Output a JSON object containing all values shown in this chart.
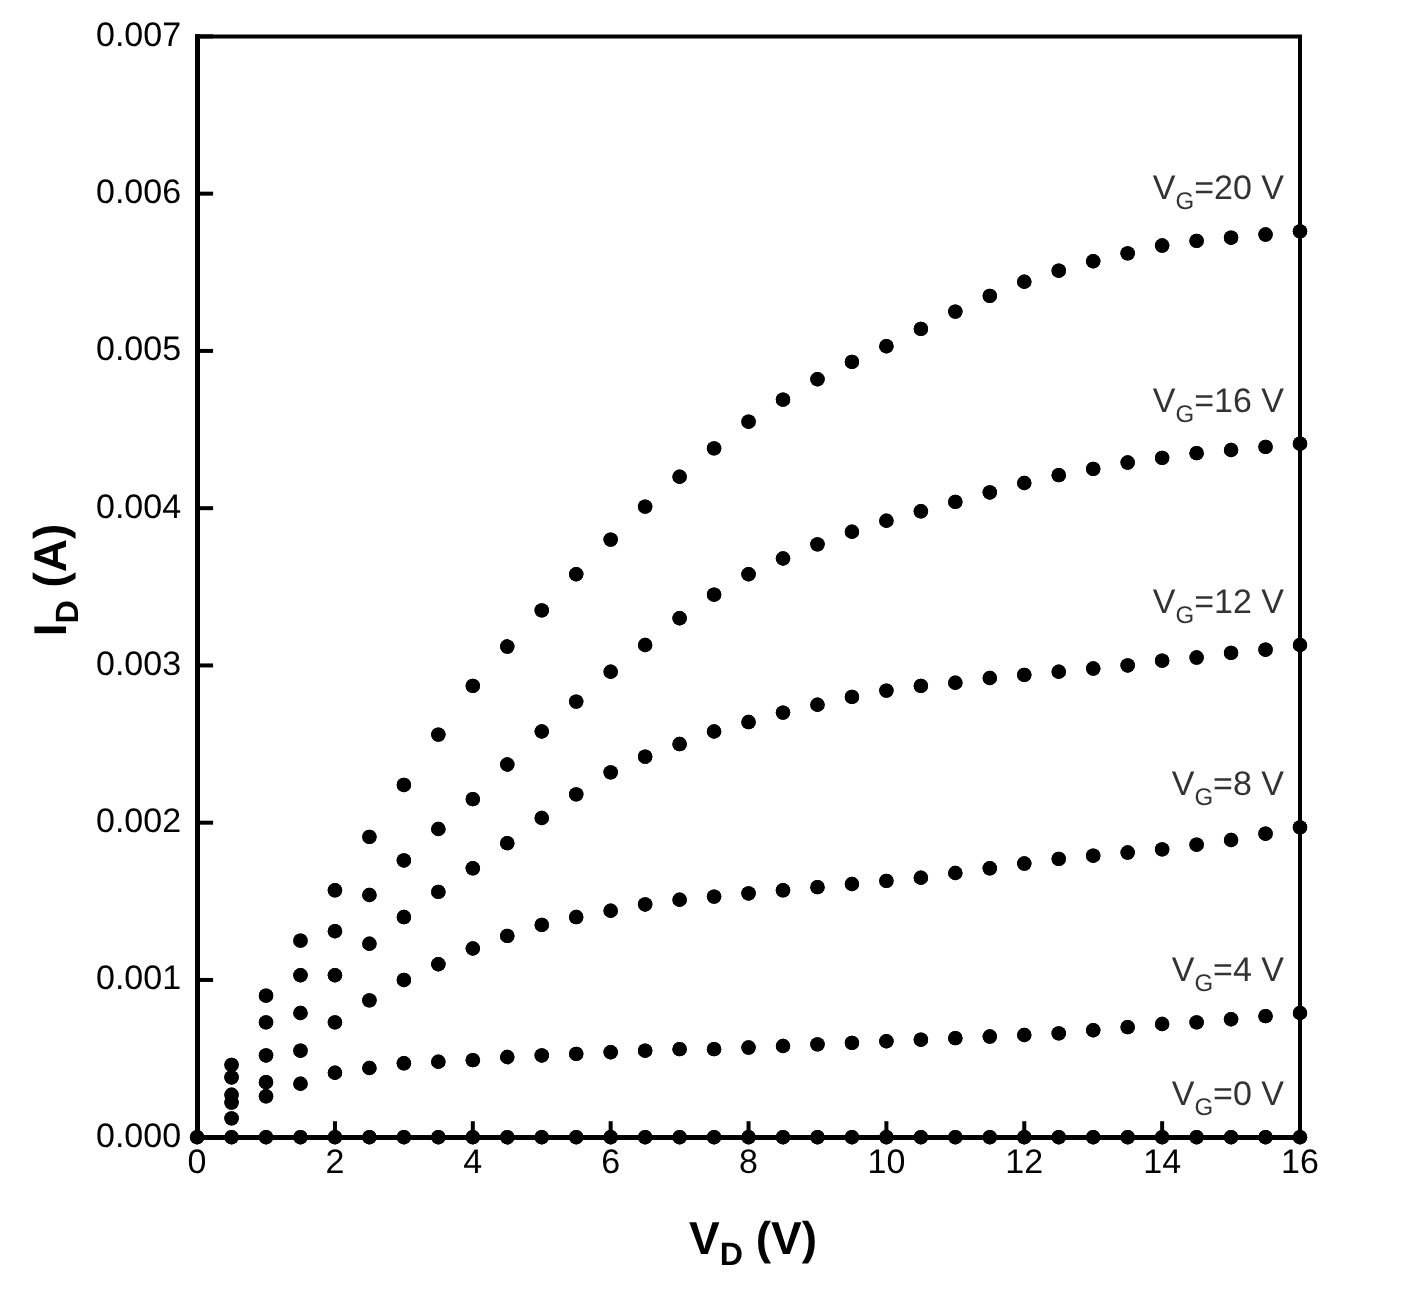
{
  "chart_data": {
    "type": "scatter",
    "xlabel": "V$_{D}$ (V)",
    "ylabel": "I$_{D}$ (A)",
    "x": [
      0,
      0.5,
      1,
      1.5,
      2,
      2.5,
      3,
      3.5,
      4,
      4.5,
      5,
      5.5,
      6,
      6.5,
      7,
      7.5,
      8,
      8.5,
      9,
      9.5,
      10,
      10.5,
      11,
      11.5,
      12,
      12.5,
      13,
      13.5,
      14,
      14.5,
      15,
      15.5,
      16
    ],
    "xlim": [
      0,
      16
    ],
    "xticks": [
      0,
      2,
      4,
      6,
      8,
      10,
      12,
      14,
      16
    ],
    "ylim": [
      0,
      0.007
    ],
    "yticks": [
      {
        "value": 0,
        "label": "0.000"
      },
      0.001,
      0.002,
      0.003,
      0.004,
      0.005,
      0.006,
      0.007
    ],
    "grid": false,
    "legend": false,
    "marker": "circle",
    "series": [
      {
        "name": "V$_{G}$=20 V",
        "color": "#000000",
        "values": [
          null,
          0.00046,
          0.0009,
          0.00125,
          0.00157,
          0.00191,
          0.00224,
          0.00256,
          0.00287,
          0.00312,
          0.00335,
          0.00358,
          0.0038,
          0.00401,
          0.0042,
          0.00438,
          0.00455,
          0.00469,
          0.00482,
          0.00493,
          0.00503,
          0.00514,
          0.00525,
          0.00535,
          0.00544,
          0.00551,
          0.00557,
          0.00562,
          0.00567,
          0.0057,
          0.00572,
          0.00574,
          0.00576
        ]
      },
      {
        "name": "V$_{G}$=16 V",
        "color": "#000000",
        "values": [
          null,
          0.00038,
          0.00073,
          0.00103,
          0.00131,
          0.00154,
          0.00176,
          0.00196,
          0.00215,
          0.00237,
          0.00258,
          0.00277,
          0.00296,
          0.00313,
          0.0033,
          0.00345,
          0.00358,
          0.00368,
          0.00377,
          0.00385,
          0.00392,
          0.00398,
          0.00404,
          0.0041,
          0.00416,
          0.00421,
          0.00425,
          0.00429,
          0.00432,
          0.00435,
          0.00437,
          0.00439,
          0.00441
        ]
      },
      {
        "name": "V$_{G}$=12 V",
        "color": "#000000",
        "values": [
          null,
          0.00027,
          0.00052,
          0.00079,
          0.00103,
          0.00123,
          0.0014,
          0.00156,
          0.00171,
          0.00187,
          0.00203,
          0.00218,
          0.00232,
          0.00242,
          0.0025,
          0.00258,
          0.00264,
          0.0027,
          0.00275,
          0.0028,
          0.00284,
          0.00287,
          0.00289,
          0.00292,
          0.00294,
          0.00296,
          0.00298,
          0.003,
          0.00303,
          0.00305,
          0.00308,
          0.0031,
          0.00313
        ]
      },
      {
        "name": "V$_{G}$=8 V",
        "color": "#000000",
        "values": [
          null,
          0.00022,
          0.00035,
          0.00055,
          0.00073,
          0.00087,
          0.001,
          0.0011,
          0.0012,
          0.00128,
          0.00135,
          0.0014,
          0.00144,
          0.00148,
          0.00151,
          0.00153,
          0.00155,
          0.00157,
          0.00159,
          0.00161,
          0.00163,
          0.00165,
          0.00168,
          0.00171,
          0.00174,
          0.00177,
          0.00179,
          0.00181,
          0.00183,
          0.00186,
          0.00189,
          0.00193,
          0.00197
        ]
      },
      {
        "name": "V$_{G}$=4 V",
        "color": "#000000",
        "values": [
          null,
          0.00012,
          0.00026,
          0.00034,
          0.00041,
          0.00044,
          0.00047,
          0.00048,
          0.00049,
          0.00051,
          0.00052,
          0.00053,
          0.00054,
          0.00055,
          0.00056,
          0.00056,
          0.00057,
          0.00058,
          0.00059,
          0.0006,
          0.00061,
          0.00062,
          0.00063,
          0.00064,
          0.00065,
          0.00066,
          0.00068,
          0.0007,
          0.00072,
          0.00073,
          0.00075,
          0.00077,
          0.00079
        ]
      },
      {
        "name": "V$_{G}$=0 V",
        "color": "#000000",
        "values": [
          0,
          0,
          0,
          0,
          0,
          0,
          0,
          0,
          0,
          0,
          0,
          0,
          0,
          0,
          0,
          0,
          0,
          0,
          0,
          0,
          0,
          0,
          0,
          0,
          0,
          0,
          0,
          0,
          0,
          0,
          0,
          0,
          0
        ]
      }
    ]
  }
}
